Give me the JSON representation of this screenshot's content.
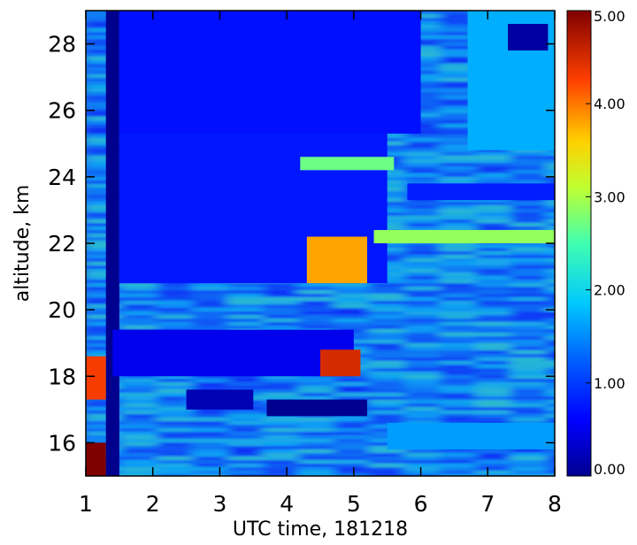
{
  "chart_data": {
    "type": "heatmap",
    "title": "",
    "xlabel": "UTC time, 181218",
    "ylabel": "altitude, km",
    "xlim": [
      1,
      8
    ],
    "ylim": [
      15,
      29
    ],
    "x_ticks": [
      1,
      2,
      3,
      4,
      5,
      6,
      7,
      8
    ],
    "x_tick_labels": [
      "1",
      "2",
      "3",
      "4",
      "5",
      "6",
      "7",
      "8"
    ],
    "y_ticks": [
      16,
      18,
      20,
      22,
      24,
      26,
      28
    ],
    "y_tick_labels": [
      "16",
      "18",
      "20",
      "22",
      "24",
      "26",
      "28"
    ],
    "colorbar": {
      "min": 0,
      "max": 5,
      "colormap": "jet",
      "ticks": [
        0,
        1,
        2,
        3,
        4,
        5
      ],
      "tick_labels": [
        "0.00",
        "1.00",
        "2.00",
        "3.00",
        "4.00",
        "5.00"
      ]
    },
    "regions": [
      {
        "x": [
          1.3,
          1.5
        ],
        "y": [
          15,
          29
        ],
        "value": 0.0
      },
      {
        "x": [
          1.5,
          6.0
        ],
        "y": [
          25.3,
          29
        ],
        "value": 0.7
      },
      {
        "x": [
          1.5,
          5.5
        ],
        "y": [
          20.8,
          25.3
        ],
        "value": 0.75
      },
      {
        "x": [
          1.4,
          5.0
        ],
        "y": [
          18.0,
          19.4
        ],
        "value": 0.5
      },
      {
        "x": [
          3.7,
          5.2
        ],
        "y": [
          16.8,
          17.3
        ],
        "value": 0.0
      },
      {
        "x": [
          2.5,
          3.5
        ],
        "y": [
          17.0,
          17.6
        ],
        "value": 0.2
      },
      {
        "x": [
          6.7,
          8.0
        ],
        "y": [
          24.8,
          29
        ],
        "value": 1.7
      },
      {
        "x": [
          7.3,
          7.9
        ],
        "y": [
          27.8,
          28.6
        ],
        "value": 0.1
      },
      {
        "x": [
          5.3,
          8.0
        ],
        "y": [
          22.0,
          22.4
        ],
        "value": 2.9
      },
      {
        "x": [
          5.8,
          8.0
        ],
        "y": [
          23.3,
          23.8
        ],
        "value": 0.8
      },
      {
        "x": [
          4.2,
          5.6
        ],
        "y": [
          24.2,
          24.6
        ],
        "value": 2.7
      },
      {
        "x": [
          4.5,
          5.1
        ],
        "y": [
          18.0,
          18.8
        ],
        "value": 4.5
      },
      {
        "x": [
          4.3,
          5.2
        ],
        "y": [
          20.8,
          22.2
        ],
        "value": 3.8
      },
      {
        "x": [
          5.5,
          8.0
        ],
        "y": [
          15.8,
          16.6
        ],
        "value": 1.6
      },
      {
        "x": [
          1.0,
          1.3
        ],
        "y": [
          15.0,
          16.0
        ],
        "value": 5.0
      },
      {
        "x": [
          1.0,
          1.3
        ],
        "y": [
          17.3,
          18.6
        ],
        "value": 4.3
      }
    ]
  }
}
